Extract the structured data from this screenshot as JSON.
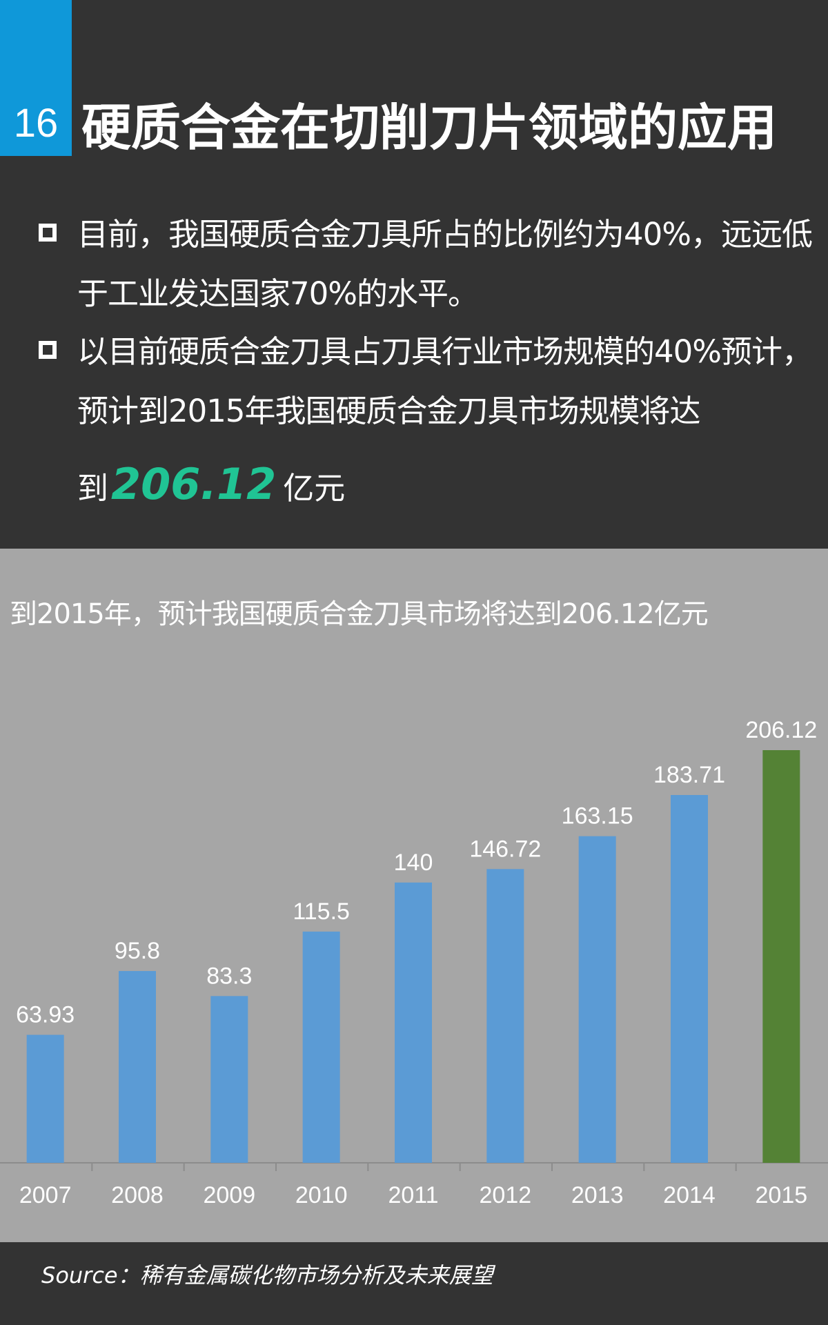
{
  "header": {
    "number": "16",
    "title": "硬质合金在切削刀片领域的应用"
  },
  "bullets": [
    {
      "text": "目前，我国硬质合金刀具所占的比例约为40%，远远低于工业发达国家70%的水平。"
    },
    {
      "text": "以目前硬质合金刀具占刀具行业市场规模的40%预计，预计到2015年我国硬质合金刀具市场规模将达",
      "prefix": "到",
      "highlight": "206.12",
      "suffix": "亿元"
    }
  ],
  "colors": {
    "badge": "#0f98d9",
    "highlight": "#20c494",
    "bar": "#5b9bd5",
    "bar_forecast": "#548235",
    "chart_bg": "#a6a6a6",
    "dark_bg": "#333333"
  },
  "chart_data": {
    "type": "bar",
    "title": "到2015年，预计我国硬质合金刀具市场将达到206.12亿元",
    "categories": [
      "2007",
      "2008",
      "2009",
      "2010",
      "2011",
      "2012",
      "2013",
      "2014",
      "2015"
    ],
    "values": [
      63.93,
      95.8,
      83.3,
      115.5,
      140,
      146.72,
      163.15,
      183.71,
      206.12
    ],
    "value_labels": [
      "63.93",
      "95.8",
      "83.3",
      "115.5",
      "140",
      "146.72",
      "163.15",
      "183.71",
      "206.12"
    ],
    "highlight_category": "2015",
    "xlabel": "",
    "ylabel": "",
    "ylim": [
      0,
      206.12
    ],
    "grid": false,
    "legend": "none"
  },
  "footer": {
    "source": "Source：稀有金属碳化物市场分析及未来展望"
  }
}
